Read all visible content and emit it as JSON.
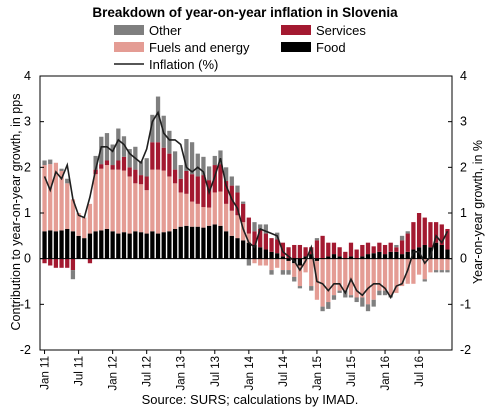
{
  "chart_data": {
    "type": "bar",
    "title": "Breakdown of year-on-year inflation in Slovenia",
    "ylabel": "Contribution to year-on-year growth, in pps",
    "y2label": "Year-on-year growth, in %",
    "source": "Source: SURS; calculations by IMAD.",
    "ylim": [
      -2,
      4
    ],
    "y2lim": [
      -2,
      4
    ],
    "yticks": [
      "-2",
      "-1",
      "0",
      "1",
      "2",
      "3",
      "4"
    ],
    "xticks": [
      {
        "label": "Jan 11",
        "index": 0
      },
      {
        "label": "Jul 11",
        "index": 6
      },
      {
        "label": "Jan 12",
        "index": 12
      },
      {
        "label": "Jul 12",
        "index": 18
      },
      {
        "label": "Jan 13",
        "index": 24
      },
      {
        "label": "Jul 13",
        "index": 30
      },
      {
        "label": "Jan 14",
        "index": 36
      },
      {
        "label": "Jul 14",
        "index": 42
      },
      {
        "label": "Jan 15",
        "index": 48
      },
      {
        "label": "Jul 15",
        "index": 54
      },
      {
        "label": "Jan 16",
        "index": 60
      },
      {
        "label": "Jul 16",
        "index": 66
      }
    ],
    "grid": false,
    "legend_position": "top",
    "series": [
      {
        "name": "Food",
        "color": "#000000",
        "values": [
          0.6,
          0.62,
          0.6,
          0.62,
          0.65,
          0.6,
          0.5,
          0.45,
          0.55,
          0.6,
          0.62,
          0.65,
          0.6,
          0.55,
          0.58,
          0.55,
          0.6,
          0.58,
          0.55,
          0.6,
          0.55,
          0.58,
          0.6,
          0.65,
          0.7,
          0.72,
          0.7,
          0.7,
          0.68,
          0.72,
          0.75,
          0.72,
          0.6,
          0.5,
          0.45,
          0.4,
          0.35,
          0.3,
          0.25,
          0.2,
          0.15,
          0.12,
          0.05,
          -0.05,
          -0.1,
          -0.15,
          0.05,
          0.1,
          -0.05,
          0.0,
          0.05,
          0.1,
          0.05,
          0.0,
          0.05,
          0.0,
          0.05,
          0.1,
          0.12,
          0.15,
          0.1,
          0.15,
          0.15,
          0.1,
          0.15,
          0.2,
          0.25,
          0.3,
          0.25,
          0.35,
          0.3,
          0.2
        ]
      },
      {
        "name": "Fuels and energy",
        "color": "#e49c94",
        "values": [
          1.45,
          1.45,
          1.5,
          1.3,
          1.0,
          0.7,
          0.5,
          0.45,
          0.65,
          1.25,
          1.35,
          1.4,
          1.35,
          1.4,
          1.35,
          1.25,
          1.05,
          1.05,
          0.95,
          1.35,
          1.4,
          1.35,
          1.2,
          1.0,
          0.75,
          0.7,
          0.55,
          0.5,
          0.45,
          0.4,
          0.7,
          0.75,
          0.6,
          0.55,
          0.5,
          0.4,
          0.2,
          -0.1,
          -0.15,
          -0.15,
          -0.25,
          -0.2,
          -0.25,
          -0.2,
          -0.3,
          -0.45,
          -0.3,
          -0.6,
          -0.85,
          -1.05,
          -0.95,
          -0.8,
          -0.7,
          -0.7,
          -0.8,
          -0.85,
          -0.85,
          -1.0,
          -0.9,
          -0.7,
          -0.7,
          -0.8,
          -0.75,
          -0.6,
          -0.55,
          -0.55,
          -0.35,
          -0.45,
          -0.3,
          -0.25,
          -0.25,
          -0.25
        ]
      },
      {
        "name": "Services",
        "color": "#a31930",
        "values": [
          -0.1,
          -0.15,
          -0.2,
          -0.2,
          -0.2,
          -0.25,
          0.0,
          0.0,
          -0.1,
          0.1,
          0.1,
          0.1,
          0.1,
          0.2,
          0.3,
          0.2,
          0.3,
          0.2,
          0.3,
          0.6,
          0.6,
          0.5,
          0.5,
          0.3,
          0.3,
          0.5,
          0.6,
          0.6,
          0.7,
          0.6,
          0.6,
          0.6,
          0.5,
          0.55,
          0.5,
          0.4,
          0.35,
          0.3,
          0.4,
          0.35,
          0.3,
          0.3,
          0.3,
          0.25,
          0.3,
          0.3,
          0.2,
          0.15,
          0.4,
          0.5,
          0.3,
          0.25,
          0.2,
          0.15,
          0.3,
          0.2,
          0.25,
          0.25,
          0.15,
          0.2,
          0.2,
          0.2,
          0.1,
          0.3,
          0.4,
          0.6,
          0.75,
          0.6,
          0.55,
          0.45,
          0.45,
          0.45
        ]
      },
      {
        "name": "Other",
        "color": "#7f7f7f",
        "values": [
          0.1,
          0.1,
          0.0,
          0.05,
          0.1,
          -0.2,
          0.0,
          0.0,
          0.0,
          0.3,
          0.6,
          0.6,
          0.45,
          0.7,
          0.45,
          0.4,
          0.5,
          0.3,
          0.4,
          0.6,
          1.0,
          0.7,
          0.5,
          0.4,
          0.3,
          0.7,
          0.7,
          0.5,
          0.4,
          0.3,
          0.2,
          0.3,
          0.3,
          0.2,
          0.15,
          0.05,
          -0.15,
          0.2,
          0.1,
          0.2,
          -0.1,
          0.15,
          -0.1,
          -0.1,
          -0.1,
          -0.05,
          0.0,
          -0.1,
          0.05,
          -0.1,
          -0.15,
          -0.1,
          -0.05,
          -0.15,
          -0.05,
          -0.1,
          -0.2,
          -0.15,
          -0.15,
          -0.1,
          -0.1,
          -0.05,
          0.05,
          0.1,
          0.05,
          0.0,
          0.0,
          -0.05,
          0.0,
          -0.05,
          -0.05,
          -0.05
        ]
      }
    ],
    "line": {
      "name": "Inflation (%)",
      "color": "#1f1f1f",
      "values": [
        1.8,
        1.5,
        1.9,
        1.75,
        2.05,
        1.3,
        0.95,
        0.9,
        1.35,
        1.95,
        2.45,
        2.45,
        2.35,
        2.6,
        2.5,
        2.3,
        2.2,
        2.1,
        2.4,
        3.0,
        3.2,
        2.75,
        2.6,
        2.6,
        2.5,
        2.0,
        1.9,
        2.0,
        1.9,
        1.45,
        1.8,
        2.2,
        1.6,
        1.3,
        1.1,
        0.65,
        0.35,
        0.25,
        0.65,
        0.6,
        0.55,
        0.5,
        0.15,
        0.05,
        -0.05,
        -0.25,
        -0.05,
        0.25,
        -0.5,
        -0.55,
        -0.7,
        -0.55,
        -0.55,
        -0.75,
        -0.45,
        -0.7,
        -0.8,
        -0.65,
        -0.55,
        -0.55,
        -0.65,
        -0.85,
        -0.6,
        -0.55,
        -0.25,
        0.15,
        0.15,
        -0.1,
        0.05,
        0.5,
        0.35,
        0.6
      ]
    }
  }
}
